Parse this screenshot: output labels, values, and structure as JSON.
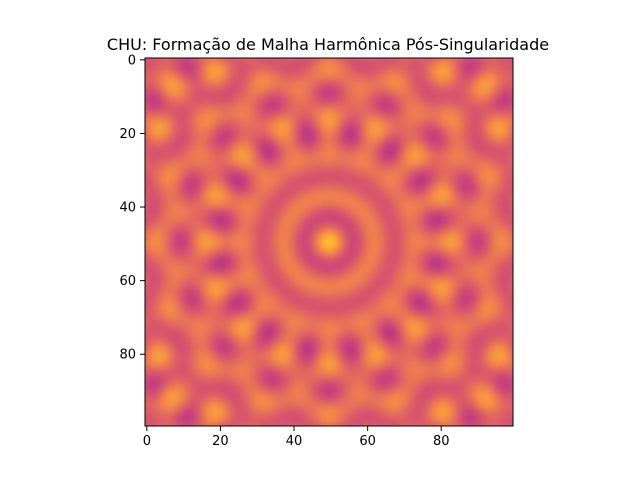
{
  "chart_data": {
    "type": "heatmap",
    "title": "CHU: Formação de Malha Harmônica Pós-Singularidade",
    "xlabel": "",
    "ylabel": "",
    "colormap": "plasma",
    "grid": false,
    "nx": 100,
    "ny": 100,
    "xlim": [
      -0.5,
      99.5
    ],
    "ylim": [
      99.5,
      -0.5
    ],
    "y_inverted": true,
    "x_ticks": [
      0,
      20,
      40,
      60,
      80
    ],
    "y_ticks": [
      0,
      20,
      40,
      60,
      80
    ],
    "x_tick_labels": [
      "0",
      "20",
      "40",
      "60",
      "80"
    ],
    "y_tick_labels": [
      "0",
      "20",
      "40",
      "60",
      "80"
    ],
    "value_range": [
      0.45,
      0.85
    ],
    "pattern": "radially symmetric interference lattice centered at (49.5, 49.5)"
  }
}
